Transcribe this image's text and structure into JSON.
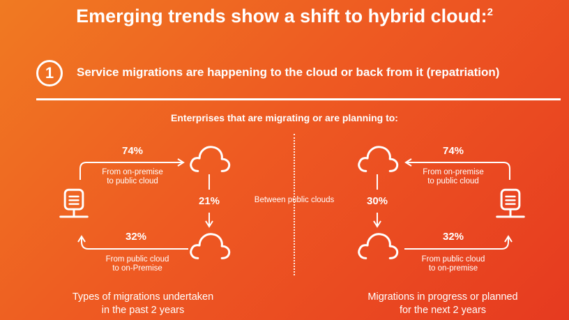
{
  "header": {
    "title": "Emerging trends show a shift to hybrid cloud:",
    "title_sup": "2"
  },
  "section": {
    "number": "1",
    "heading": "Service migrations are happening to the cloud or back from it (repatriation)",
    "caption": "Enterprises that are migrating or are planning to:"
  },
  "left": {
    "top_pct": "74%",
    "top_label_1": "From on-premise",
    "top_label_2": "to public cloud",
    "mid_pct": "21%",
    "bottom_pct": "32%",
    "bottom_label_1": "From public cloud",
    "bottom_label_2": "to on-Premise",
    "footer_1": "Types of migrations undertaken",
    "footer_2": "in the past 2 years"
  },
  "center_label": "Between public clouds",
  "right": {
    "top_pct": "74%",
    "top_label_1": "From on-premise",
    "top_label_2": "to public cloud",
    "mid_pct": "30%",
    "bottom_pct": "32%",
    "bottom_label_1": "From public cloud",
    "bottom_label_2": "to on-premise",
    "footer_1": "Migrations in progress or planned",
    "footer_2": "for the next 2 years"
  },
  "icons": [
    "cloud-icon",
    "server-icon",
    "arrow-icon",
    "number-circle-icon"
  ],
  "colors": {
    "background_start": "#f07a22",
    "background_end": "#e63a20",
    "foreground": "#ffffff"
  }
}
